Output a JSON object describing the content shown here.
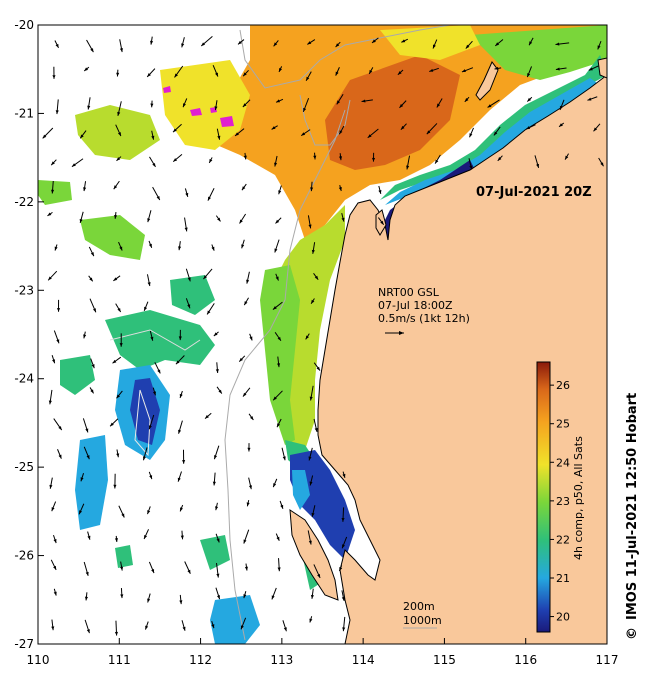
{
  "map": {
    "date_label": "07-Jul-2021 20Z",
    "current_source": "NRT00 GSL",
    "current_time": "07-Jul 18:00Z",
    "vector_scale": "0.5m/s (1kt 12h)",
    "isobath_shallow": "200m",
    "isobath_deep": "1000m",
    "colorbar_label": "4h comp, p50, All Sats",
    "credit": "IMOS 11-Jul-2021 12:50 Hobart",
    "copyright_symbol": "©",
    "x_ticks": [
      "110",
      "111",
      "112",
      "113",
      "114",
      "115",
      "116",
      "117"
    ],
    "y_ticks": [
      "-20",
      "-21",
      "-22",
      "-23",
      "-24",
      "-25",
      "-26",
      "-27"
    ],
    "colorbar_ticks": [
      "20",
      "21",
      "22",
      "23",
      "24",
      "25",
      "26"
    ],
    "x_range": [
      110,
      117
    ],
    "y_range": [
      -27,
      -20
    ],
    "colorbar_range": [
      19.6,
      26.6
    ],
    "colors": {
      "land": "#f9c89b",
      "cloud": "#ffffff",
      "c19": "#1a1a7a",
      "c20": "#1f3fb0",
      "c21": "#25a8e0",
      "c22": "#2fc07a",
      "c23": "#7ad63a",
      "c24": "#f0e22a",
      "c25": "#f5a21f",
      "c26": "#d9671a",
      "c27": "#8a1a0a",
      "outlier": "#e020d0"
    }
  }
}
